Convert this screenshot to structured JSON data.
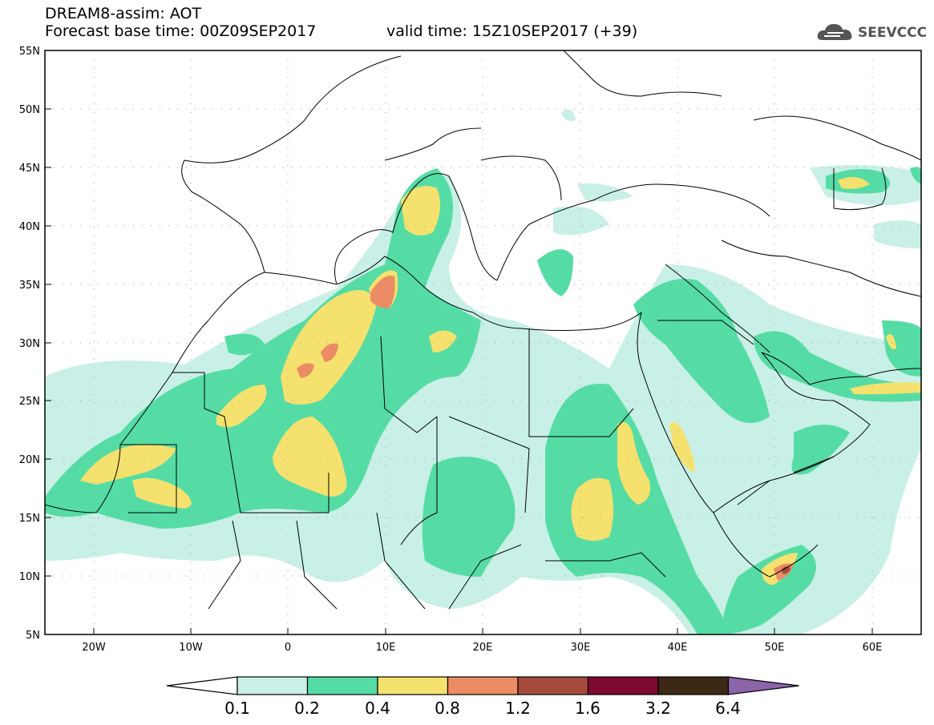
{
  "header": {
    "title": "DREAM8-assim: AOT",
    "base_time": "Forecast base time: 00Z09SEP2017",
    "valid_time": "valid time: 15Z10SEP2017 (+39)"
  },
  "logo": {
    "text": "SEEVCCC",
    "icon": "cloud-logo-icon",
    "color": "#555555"
  },
  "axes": {
    "lat_labels": [
      "55N",
      "50N",
      "45N",
      "40N",
      "35N",
      "30N",
      "25N",
      "20N",
      "15N",
      "10N",
      "5N"
    ],
    "lon_labels": [
      "20W",
      "10W",
      "0",
      "10E",
      "20E",
      "30E",
      "40E",
      "50E",
      "60E"
    ],
    "lat_range": [
      5,
      55
    ],
    "lon_range": [
      -25,
      65
    ]
  },
  "colorbar": {
    "labels": [
      "0.1",
      "0.2",
      "0.4",
      "0.8",
      "1.2",
      "1.6",
      "3.2",
      "6.4"
    ],
    "colors": [
      "#c8f0e6",
      "#55dca5",
      "#f5e16e",
      "#eb8c64",
      "#a54b3c",
      "#7d0a32",
      "#3c2814",
      "#8c64aa"
    ],
    "below_color": "#ffffff"
  }
}
